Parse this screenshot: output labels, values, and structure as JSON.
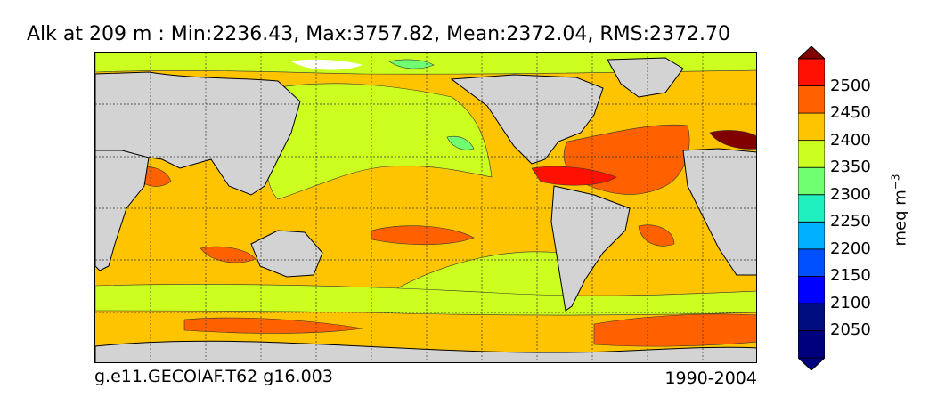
{
  "title": "Alk at 209 m : Min:2236.43, Max:3757.82, Mean:2372.04, RMS:2372.70",
  "footer": {
    "case_name": "g.e11.GECOIAF.T62 g16.003",
    "years": "1990-2004"
  },
  "colorbar": {
    "unit_text": "meq m",
    "unit_exponent": "−3",
    "levels": [
      {
        "label": "2050",
        "color": "#000d80"
      },
      {
        "label": "2100",
        "color": "#0000ff"
      },
      {
        "label": "2150",
        "color": "#0050ff"
      },
      {
        "label": "2200",
        "color": "#00b0ff"
      },
      {
        "label": "2250",
        "color": "#20f0c0"
      },
      {
        "label": "2300",
        "color": "#70ff70"
      },
      {
        "label": "2350",
        "color": "#ccff20"
      },
      {
        "label": "2400",
        "color": "#ffc400"
      },
      {
        "label": "2450",
        "color": "#ff6000"
      },
      {
        "label": "2500",
        "color": "#ff1000"
      }
    ],
    "under_color": "#00007f",
    "over_color": "#800000",
    "extend": "both"
  },
  "map": {
    "projection": "cylindrical",
    "grid": "dashed",
    "land_color": "#d3d3d3",
    "missing_color": "#ffffff"
  }
}
